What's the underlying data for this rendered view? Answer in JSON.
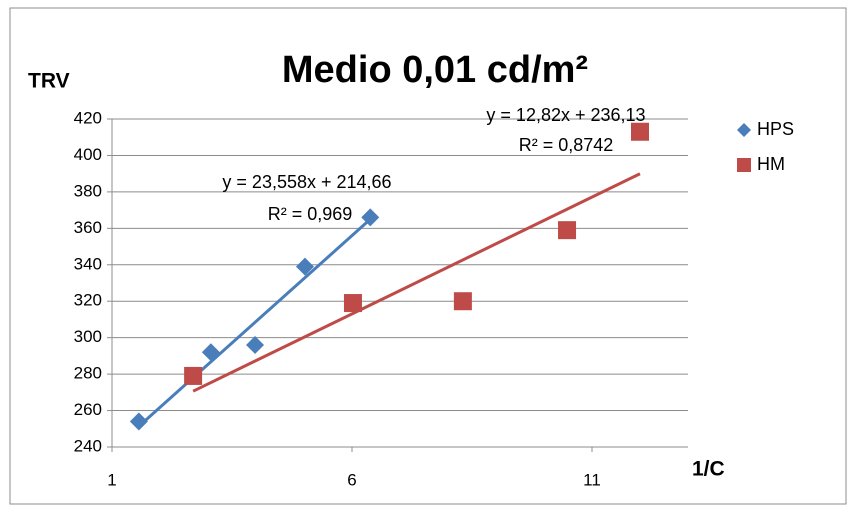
{
  "chart_data": {
    "type": "scatter",
    "title": "Medio 0,01 cd/m²",
    "y_label": "TRV",
    "x_label": "1/C",
    "xlim": [
      1,
      13
    ],
    "xticks": [
      1,
      6,
      11
    ],
    "ylim": [
      240,
      420
    ],
    "yticks": [
      240,
      260,
      280,
      300,
      320,
      340,
      360,
      380,
      400,
      420
    ],
    "grid": true,
    "legend": "right",
    "series": [
      {
        "name": "HPS",
        "color": "#4a7ebb",
        "marker": "diamond",
        "x": [
          1.56,
          3.06,
          3.98,
          5.02,
          6.38
        ],
        "values": [
          254,
          292,
          296,
          339,
          366
        ],
        "trendline": {
          "slope": 23.558,
          "intercept": 214.66,
          "equation": "y = 23,558x + 214,66",
          "r2": "R² = 0,969"
        }
      },
      {
        "name": "HM",
        "color": "#be4b48",
        "marker": "square",
        "x": [
          2.69,
          6.02,
          8.31,
          10.48,
          12.0
        ],
        "values": [
          279,
          319,
          320,
          359,
          413
        ],
        "trendline": {
          "slope": 12.82,
          "intercept": 236.13,
          "equation": "y = 12,82x + 236,13",
          "r2": "R² = 0,8742"
        }
      }
    ]
  }
}
